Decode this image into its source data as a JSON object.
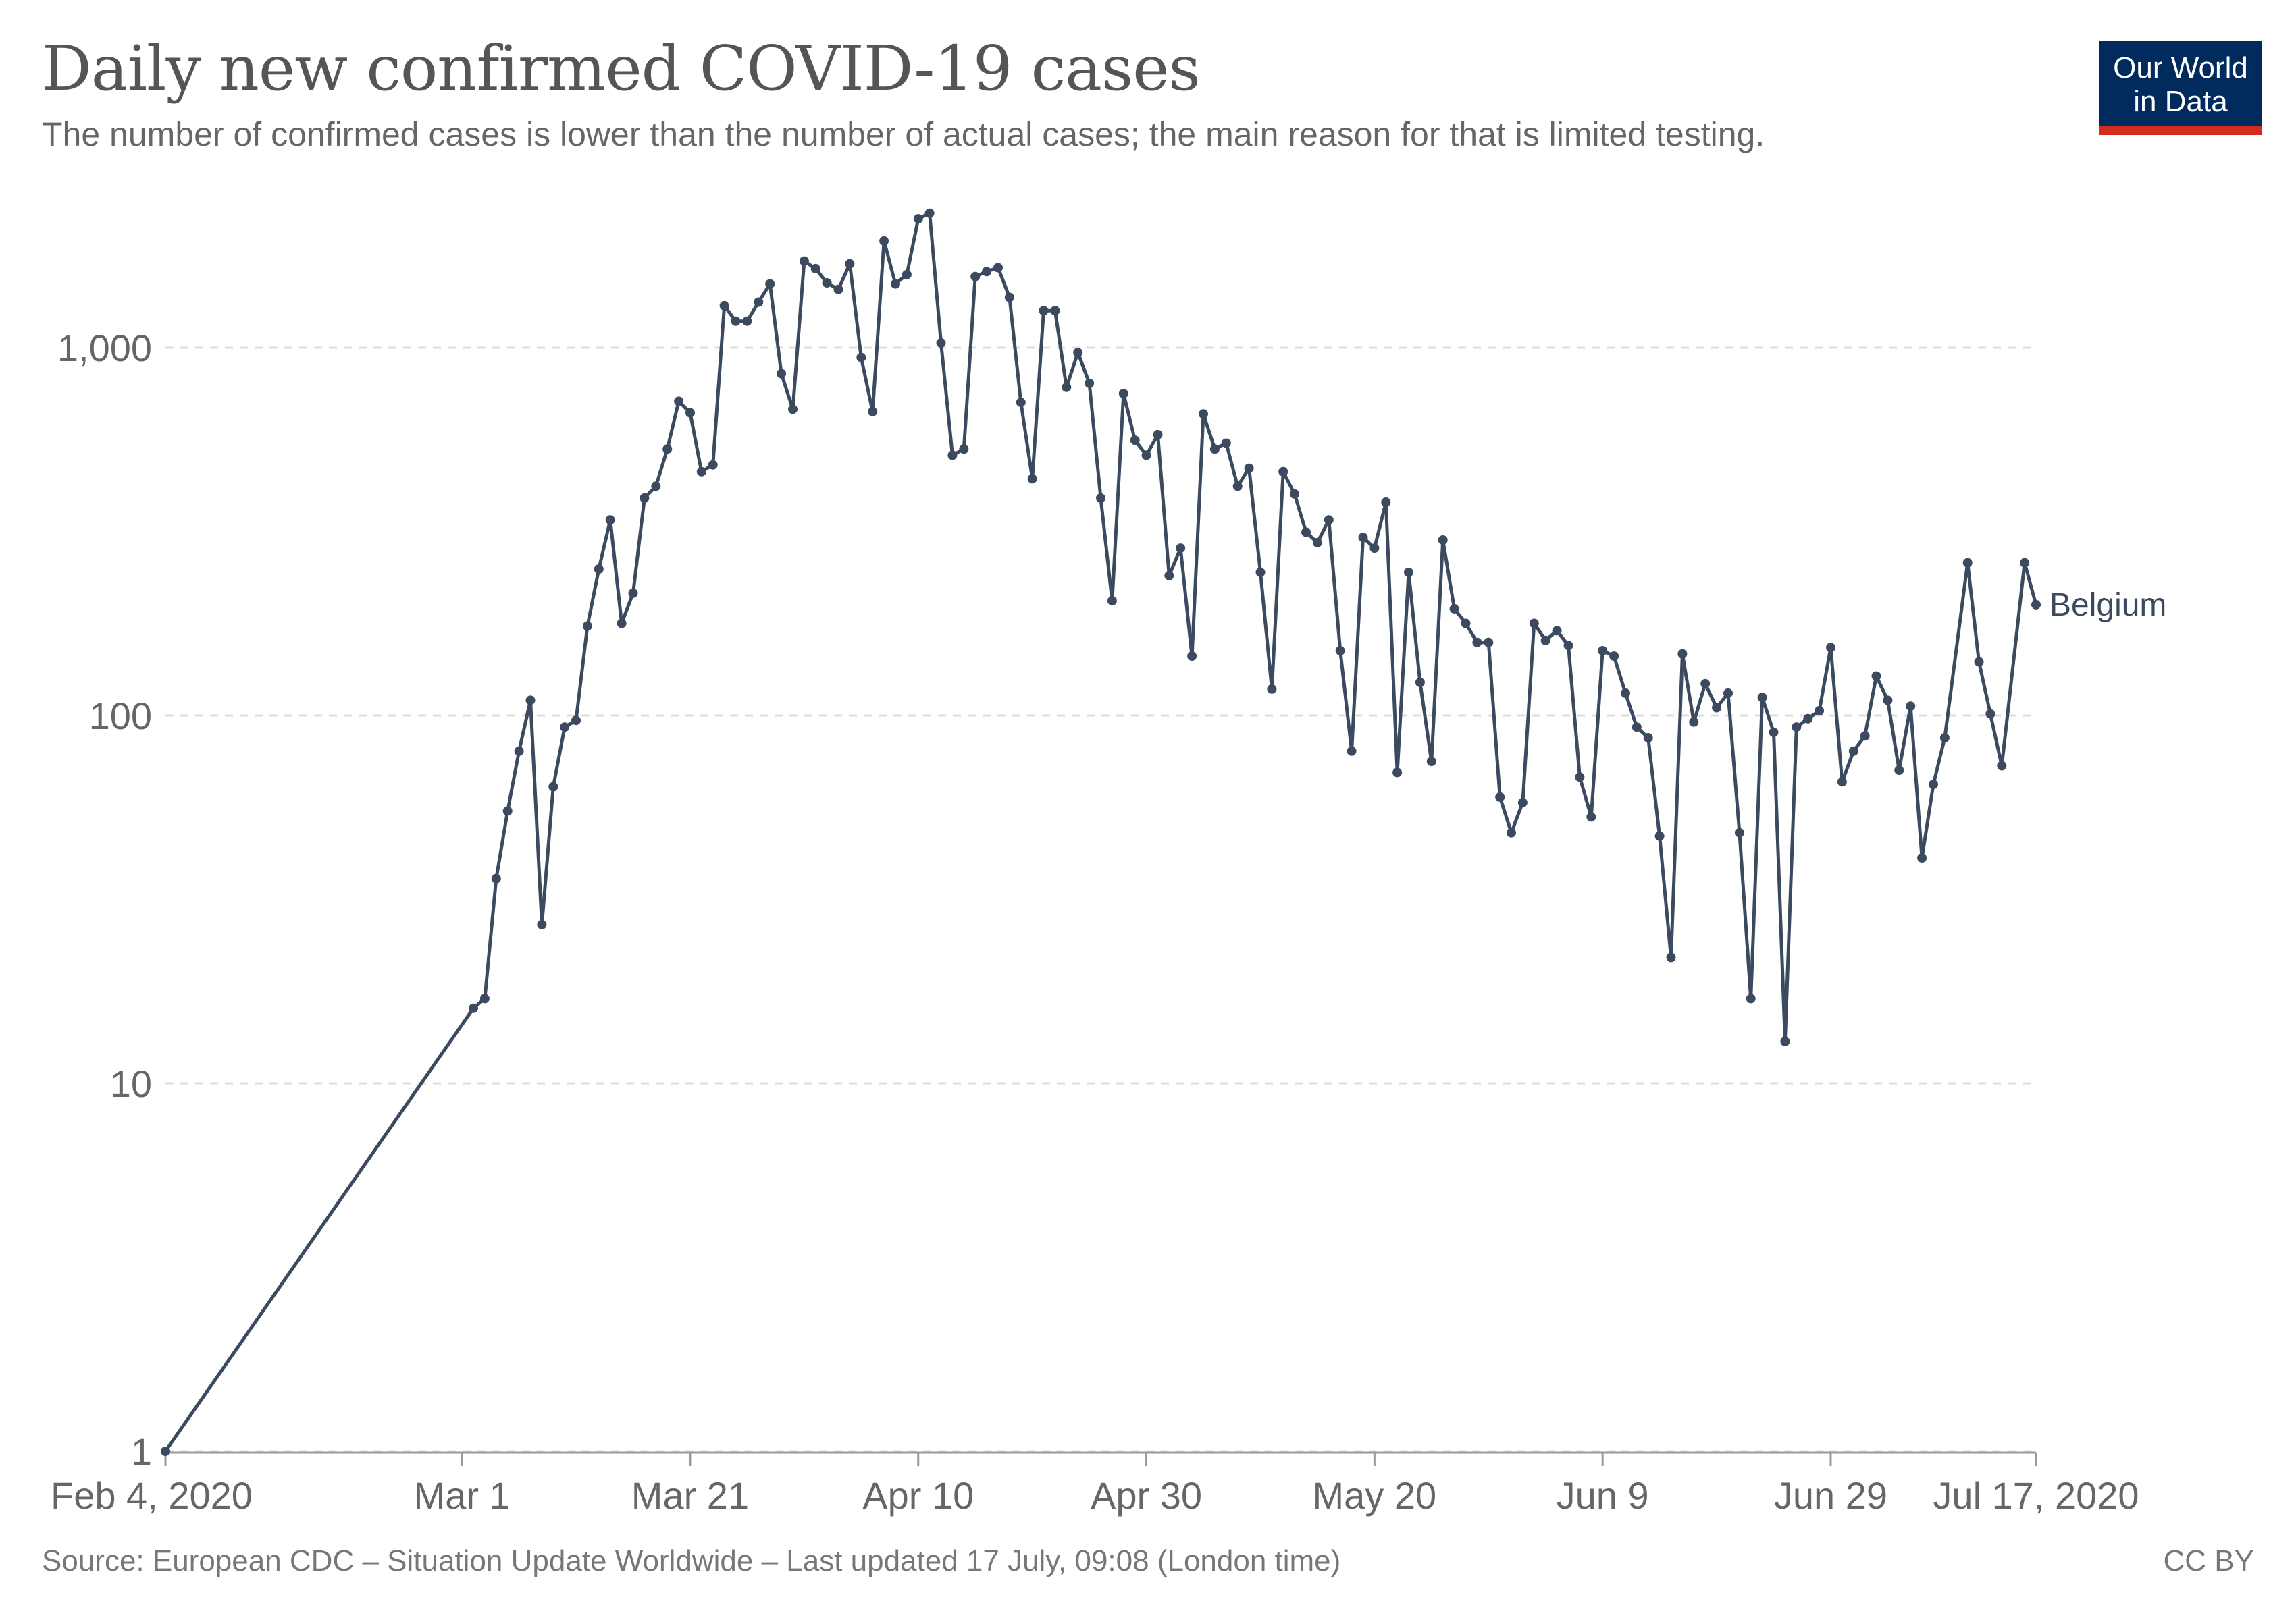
{
  "header": {
    "title": "Daily new confirmed COVID-19 cases",
    "subtitle": "The number of confirmed cases is lower than the number of actual cases; the main reason for that is limited testing."
  },
  "logo": {
    "line1": "Our World",
    "line2": "in Data"
  },
  "footer": {
    "source": "Source: European CDC – Situation Update Worldwide – Last updated 17 July, 09:08 (London time)",
    "license": "CC BY"
  },
  "colors": {
    "line": "#3b4a5e",
    "grid": "#dddddd",
    "axis": "#999999",
    "text": "#666666",
    "logo_bg": "#002b5c",
    "logo_accent": "#d42b21"
  },
  "chart_data": {
    "type": "line",
    "title": "Daily new confirmed COVID-19 cases",
    "subtitle": "The number of confirmed cases is lower than the number of actual cases; the main reason for that is limited testing.",
    "y_scale": "log",
    "ylim": [
      1,
      2500
    ],
    "y_ticks": [
      {
        "value": 1,
        "label": "1"
      },
      {
        "value": 10,
        "label": "10"
      },
      {
        "value": 100,
        "label": "100"
      },
      {
        "value": 1000,
        "label": "1,000"
      }
    ],
    "x_ticks": [
      {
        "date": "2020-02-04",
        "label": "Feb 4, 2020"
      },
      {
        "date": "2020-03-01",
        "label": "Mar 1"
      },
      {
        "date": "2020-03-21",
        "label": "Mar 21"
      },
      {
        "date": "2020-04-10",
        "label": "Apr 10"
      },
      {
        "date": "2020-04-30",
        "label": "Apr 30"
      },
      {
        "date": "2020-05-20",
        "label": "May 20"
      },
      {
        "date": "2020-06-09",
        "label": "Jun 9"
      },
      {
        "date": "2020-06-29",
        "label": "Jun 29"
      },
      {
        "date": "2020-07-17",
        "label": "Jul 17, 2020"
      }
    ],
    "xlim": [
      "2020-02-04",
      "2020-07-17"
    ],
    "grid": "horizontal-dashed",
    "series": [
      {
        "name": "Belgium",
        "points": [
          [
            "2020-02-04",
            1
          ],
          [
            "2020-03-02",
            16
          ],
          [
            "2020-03-03",
            17
          ],
          [
            "2020-03-04",
            36
          ],
          [
            "2020-03-05",
            55
          ],
          [
            "2020-03-06",
            80
          ],
          [
            "2020-03-07",
            110
          ],
          [
            "2020-03-08",
            27
          ],
          [
            "2020-03-09",
            64
          ],
          [
            "2020-03-10",
            93
          ],
          [
            "2020-03-11",
            97
          ],
          [
            "2020-03-12",
            175
          ],
          [
            "2020-03-13",
            250
          ],
          [
            "2020-03-14",
            340
          ],
          [
            "2020-03-15",
            178
          ],
          [
            "2020-03-16",
            215
          ],
          [
            "2020-03-17",
            390
          ],
          [
            "2020-03-18",
            420
          ],
          [
            "2020-03-19",
            530
          ],
          [
            "2020-03-20",
            715
          ],
          [
            "2020-03-21",
            665
          ],
          [
            "2020-03-22",
            460
          ],
          [
            "2020-03-23",
            480
          ],
          [
            "2020-03-24",
            1300
          ],
          [
            "2020-03-25",
            1180
          ],
          [
            "2020-03-26",
            1180
          ],
          [
            "2020-03-27",
            1330
          ],
          [
            "2020-03-28",
            1490
          ],
          [
            "2020-03-29",
            850
          ],
          [
            "2020-03-30",
            680
          ],
          [
            "2020-03-31",
            1720
          ],
          [
            "2020-04-01",
            1640
          ],
          [
            "2020-04-02",
            1500
          ],
          [
            "2020-04-03",
            1440
          ],
          [
            "2020-04-04",
            1690
          ],
          [
            "2020-04-05",
            940
          ],
          [
            "2020-04-06",
            670
          ],
          [
            "2020-04-07",
            1950
          ],
          [
            "2020-04-08",
            1490
          ],
          [
            "2020-04-09",
            1580
          ],
          [
            "2020-04-10",
            2240
          ],
          [
            "2020-04-11",
            2320
          ],
          [
            "2020-04-12",
            1030
          ],
          [
            "2020-04-13",
            510
          ],
          [
            "2020-04-14",
            530
          ],
          [
            "2020-04-15",
            1560
          ],
          [
            "2020-04-16",
            1610
          ],
          [
            "2020-04-17",
            1650
          ],
          [
            "2020-04-18",
            1370
          ],
          [
            "2020-04-19",
            710
          ],
          [
            "2020-04-20",
            440
          ],
          [
            "2020-04-21",
            1260
          ],
          [
            "2020-04-22",
            1260
          ],
          [
            "2020-04-23",
            780
          ],
          [
            "2020-04-24",
            970
          ],
          [
            "2020-04-25",
            800
          ],
          [
            "2020-04-26",
            390
          ],
          [
            "2020-04-27",
            205
          ],
          [
            "2020-04-28",
            750
          ],
          [
            "2020-04-29",
            560
          ],
          [
            "2020-04-30",
            510
          ],
          [
            "2020-05-01",
            580
          ],
          [
            "2020-05-02",
            240
          ],
          [
            "2020-05-03",
            285
          ],
          [
            "2020-05-04",
            145
          ],
          [
            "2020-05-05",
            660
          ],
          [
            "2020-05-06",
            530
          ],
          [
            "2020-05-07",
            550
          ],
          [
            "2020-05-08",
            420
          ],
          [
            "2020-05-09",
            470
          ],
          [
            "2020-05-10",
            245
          ],
          [
            "2020-05-11",
            118
          ],
          [
            "2020-05-12",
            460
          ],
          [
            "2020-05-13",
            400
          ],
          [
            "2020-05-14",
            315
          ],
          [
            "2020-05-15",
            295
          ],
          [
            "2020-05-16",
            340
          ],
          [
            "2020-05-17",
            150
          ],
          [
            "2020-05-18",
            80
          ],
          [
            "2020-05-19",
            305
          ],
          [
            "2020-05-20",
            285
          ],
          [
            "2020-05-21",
            380
          ],
          [
            "2020-05-22",
            70
          ],
          [
            "2020-05-23",
            245
          ],
          [
            "2020-05-24",
            123
          ],
          [
            "2020-05-25",
            75
          ],
          [
            "2020-05-26",
            300
          ],
          [
            "2020-05-27",
            195
          ],
          [
            "2020-05-28",
            178
          ],
          [
            "2020-05-29",
            158
          ],
          [
            "2020-05-30",
            158
          ],
          [
            "2020-05-31",
            60
          ],
          [
            "2020-06-01",
            48
          ],
          [
            "2020-06-02",
            58
          ],
          [
            "2020-06-03",
            178
          ],
          [
            "2020-06-04",
            160
          ],
          [
            "2020-06-05",
            170
          ],
          [
            "2020-06-06",
            155
          ],
          [
            "2020-06-07",
            68
          ],
          [
            "2020-06-08",
            53
          ],
          [
            "2020-06-09",
            150
          ],
          [
            "2020-06-10",
            145
          ],
          [
            "2020-06-11",
            115
          ],
          [
            "2020-06-12",
            93
          ],
          [
            "2020-06-13",
            87
          ],
          [
            "2020-06-14",
            47
          ],
          [
            "2020-06-15",
            22
          ],
          [
            "2020-06-16",
            147
          ],
          [
            "2020-06-17",
            96
          ],
          [
            "2020-06-18",
            122
          ],
          [
            "2020-06-19",
            105
          ],
          [
            "2020-06-20",
            115
          ],
          [
            "2020-06-21",
            48
          ],
          [
            "2020-06-22",
            17
          ],
          [
            "2020-06-23",
            112
          ],
          [
            "2020-06-24",
            90
          ],
          [
            "2020-06-25",
            13
          ],
          [
            "2020-06-26",
            93
          ],
          [
            "2020-06-27",
            98
          ],
          [
            "2020-06-28",
            103
          ],
          [
            "2020-06-29",
            153
          ],
          [
            "2020-06-30",
            66
          ],
          [
            "2020-07-01",
            80
          ],
          [
            "2020-07-02",
            88
          ],
          [
            "2020-07-03",
            128
          ],
          [
            "2020-07-04",
            110
          ],
          [
            "2020-07-05",
            71
          ],
          [
            "2020-07-06",
            106
          ],
          [
            "2020-07-07",
            41
          ],
          [
            "2020-07-08",
            65
          ],
          [
            "2020-07-09",
            87
          ],
          [
            "2020-07-11",
            260
          ],
          [
            "2020-07-12",
            140
          ],
          [
            "2020-07-13",
            101
          ],
          [
            "2020-07-14",
            73
          ],
          [
            "2020-07-16",
            260
          ],
          [
            "2020-07-17",
            200
          ]
        ]
      }
    ]
  }
}
